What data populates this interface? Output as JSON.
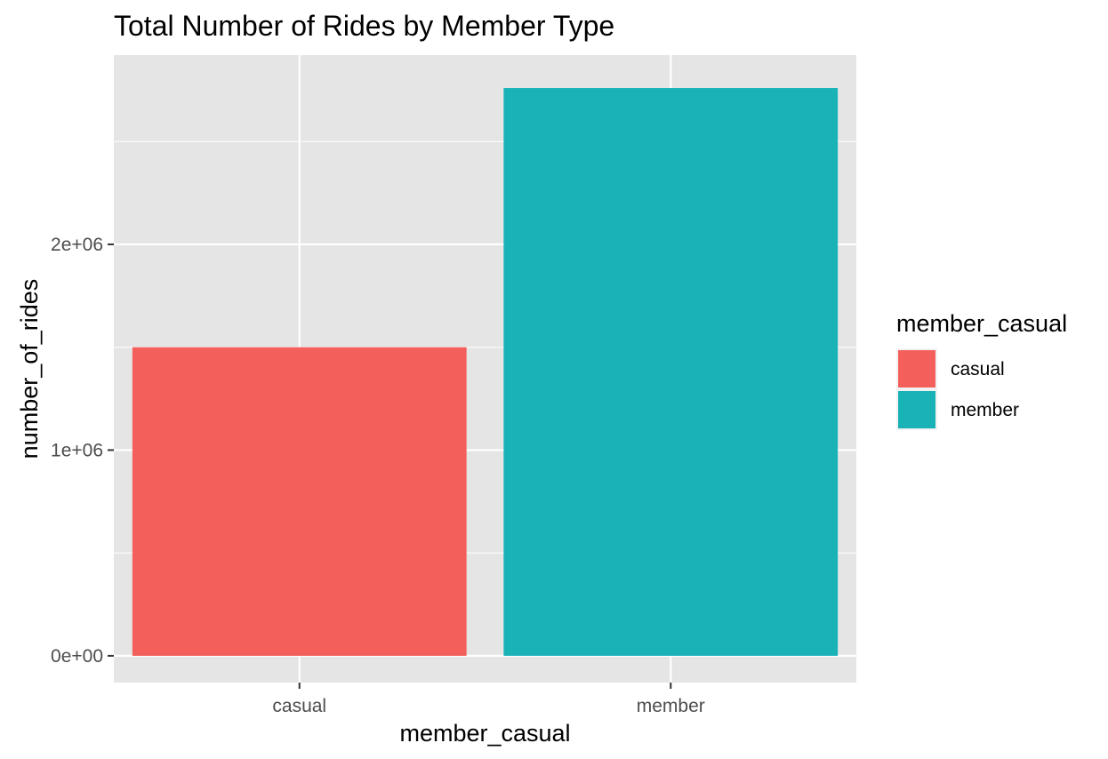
{
  "colors": {
    "panel_background": "#e5e5e5",
    "grid": "#ffffff",
    "tick_color": "#333333",
    "legend_key_background": "#f2f2f2"
  },
  "chart_data": {
    "type": "bar",
    "title": "Total Number of Rides by Member Type",
    "xlabel": "member_casual",
    "ylabel": "number_of_rides",
    "categories": [
      "casual",
      "member"
    ],
    "values": [
      1500000,
      2760000
    ],
    "colors": [
      "#f35f5b",
      "#19b3b7"
    ],
    "ylim": [
      -130000,
      2920000
    ],
    "y_ticks": [
      0,
      1000000,
      2000000
    ],
    "y_tick_labels": [
      "0e+00",
      "1e+06",
      "2e+06"
    ],
    "y_minor_ticks": [
      500000,
      1500000,
      2500000
    ],
    "grid": true,
    "legend": {
      "title": "member_casual",
      "position": "right",
      "items": [
        "casual",
        "member"
      ]
    }
  }
}
